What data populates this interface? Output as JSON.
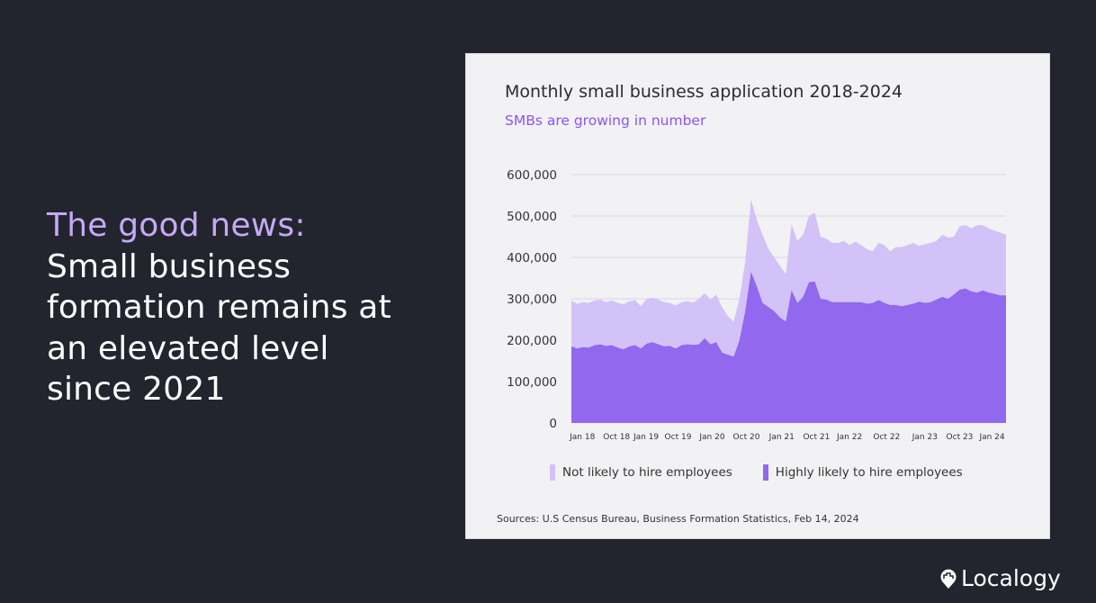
{
  "headline": {
    "accent": "The good news:",
    "rest": "Small business formation remains at an elevated level since 2021"
  },
  "logo": {
    "text": "Localogy",
    "icon": "pin-icon"
  },
  "colors": {
    "not_likely": "#d3c2f7",
    "highly_likely": "#9168ee",
    "background": "#22252e",
    "card": "#f2f2f5"
  },
  "chart_data": {
    "type": "area",
    "stacked": false,
    "title": "Monthly small business application 2018-2024",
    "subtitle": "SMBs are growing in number",
    "source": "Sources: U.S Census Bureau, Business Formation Statistics, Feb 14, 2024",
    "ylim": [
      0,
      600000
    ],
    "yticks": [
      "0",
      "100,000",
      "200,000",
      "300,000",
      "400,000",
      "500,000",
      "600,000"
    ],
    "ytick_values": [
      0,
      100000,
      200000,
      300000,
      400000,
      500000,
      600000
    ],
    "xticks": [
      {
        "label": "Jan 18",
        "month": 1.9
      },
      {
        "label": "Oct 18",
        "month": 7.8
      },
      {
        "label": "Jan 19",
        "month": 12.9
      },
      {
        "label": "Oct 19",
        "month": 18.4
      },
      {
        "label": "Jan 20",
        "month": 24.3
      },
      {
        "label": "Oct 20",
        "month": 30.2
      },
      {
        "label": "Jan 21",
        "month": 36.3
      },
      {
        "label": "Oct 21",
        "month": 42.3
      },
      {
        "label": "Jan 22",
        "month": 48
      },
      {
        "label": "Oct 22",
        "month": 54.4
      },
      {
        "label": "Jan 23",
        "month": 61
      },
      {
        "label": "Oct 23",
        "month": 67
      },
      {
        "label": "Jan 24",
        "month": 72.6
      }
    ],
    "grid": true,
    "legend_position": "bottom",
    "series": [
      {
        "name": "Not likely to hire employees",
        "color": "#d3c2f7",
        "note": "top boundary = total applications (thousands)",
        "values": [
          295,
          288,
          292,
          290,
          296,
          298,
          292,
          296,
          290,
          287,
          294,
          297,
          282,
          300,
          302,
          298,
          292,
          290,
          284,
          292,
          294,
          291,
          300,
          314,
          298,
          310,
          280,
          258,
          245,
          300,
          390,
          540,
          490,
          455,
          420,
          400,
          380,
          360,
          480,
          440,
          455,
          500,
          508,
          450,
          445,
          435,
          435,
          440,
          430,
          438,
          430,
          420,
          415,
          435,
          430,
          415,
          425,
          425,
          430,
          435,
          428,
          432,
          435,
          440,
          455,
          448,
          450,
          475,
          478,
          470,
          478,
          478,
          470,
          465,
          460,
          455
        ]
      },
      {
        "name": "Highly likely to hire employees",
        "color": "#9168ee",
        "values": [
          185,
          180,
          183,
          182,
          188,
          190,
          186,
          188,
          182,
          178,
          185,
          188,
          180,
          192,
          195,
          190,
          185,
          186,
          180,
          188,
          190,
          189,
          190,
          205,
          190,
          195,
          170,
          165,
          160,
          200,
          270,
          365,
          330,
          290,
          280,
          270,
          255,
          245,
          320,
          290,
          305,
          340,
          342,
          300,
          298,
          292,
          292,
          292,
          292,
          292,
          292,
          288,
          290,
          297,
          290,
          285,
          285,
          282,
          285,
          288,
          293,
          290,
          292,
          298,
          305,
          300,
          310,
          322,
          325,
          318,
          315,
          320,
          315,
          312,
          308,
          308
        ]
      }
    ],
    "value_unit": "thousands"
  }
}
